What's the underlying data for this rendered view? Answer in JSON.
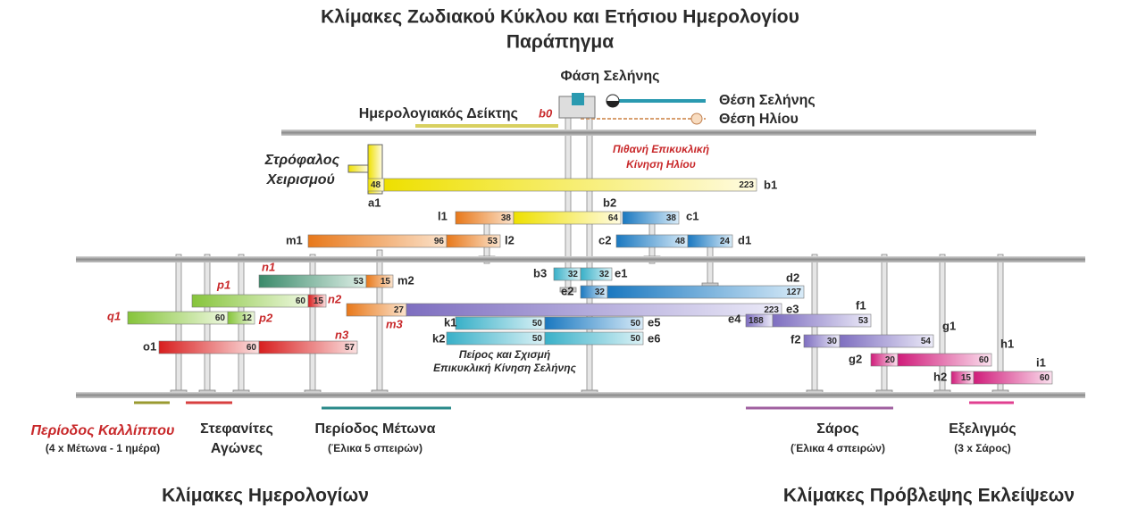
{
  "title": [
    "Κλίμακες Ζωδιακού Κύκλου και Ετήσιου Ημερολογίου",
    "Παράπηγμα"
  ],
  "top": {
    "moon_phase": "Φάση Σελήνης",
    "moon_position": "Θέση Σελήνης",
    "sun_position": "Θέση Ηλίου",
    "calendar_pointer": "Ημερολογιακός Δείκτης",
    "b0": "b0"
  },
  "crank": [
    "Στρόφαλος",
    "Χειρισμού"
  ],
  "sun_epicycle": [
    "Πιθανή Επικυκλική",
    "Κίνηση Ηλίου"
  ],
  "moon_epicycle": [
    "Πείρος και Σχισμή",
    "Επικυκλική Κίνηση Σελήνης"
  ],
  "gears": [
    "a1",
    "b1",
    "l1",
    "b2",
    "c1",
    "m1",
    "l2",
    "c2",
    "d1",
    "n1",
    "m2",
    "p1",
    "n2",
    "b3",
    "e1",
    "d2",
    "e2",
    "q1",
    "p2",
    "e3",
    "m3",
    "k1",
    "e5",
    "e4",
    "f1",
    "o1",
    "n3",
    "k2",
    "e6",
    "g1",
    "f2",
    "h1",
    "g2",
    "i1",
    "h2"
  ],
  "teeth": [
    48,
    223,
    38,
    64,
    38,
    96,
    53,
    48,
    24,
    53,
    15,
    60,
    15,
    32,
    32,
    32,
    127,
    60,
    12,
    27,
    223,
    50,
    50,
    188,
    53,
    60,
    57,
    50,
    50,
    30,
    54,
    20,
    60,
    15,
    60
  ],
  "bottom": [
    {
      "name": "Περίοδος Καλλίππου",
      "note": "(4 x Μέτωνα - 1 ημέρα)"
    },
    {
      "name": "Στεφανίτες",
      "note": "Αγώνες"
    },
    {
      "name": "Περίοδος Μέτωνα",
      "note": "(Έλικα 5 σπειρών)"
    },
    {
      "name": "Σάρος",
      "note": "(Έλικα 4 σπειρών)"
    },
    {
      "name": "Εξελιγμός",
      "note": "(3 x Σάρος)"
    }
  ],
  "sections": [
    "Κλίμακες Ημερολογίων",
    "Κλίμακες Πρόβλεψης Εκλείψεων"
  ]
}
